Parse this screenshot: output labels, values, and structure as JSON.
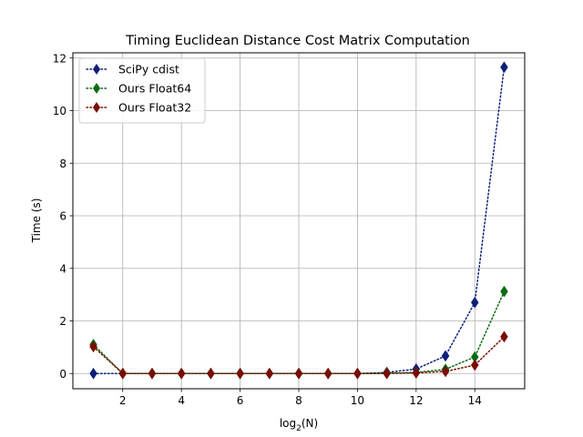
{
  "chart_data": {
    "type": "line",
    "title": "Timing Euclidean Distance Cost Matrix Computation",
    "xlabel_main": "log",
    "xlabel_sub": "2",
    "xlabel_arg": "(N)",
    "ylabel": "Time (s)",
    "xlim": [
      0.3,
      15.7
    ],
    "ylim": [
      -0.58,
      12.2
    ],
    "xticks": [
      2,
      4,
      6,
      8,
      10,
      12,
      14
    ],
    "yticks": [
      0,
      2,
      4,
      6,
      8,
      10,
      12
    ],
    "grid": true,
    "legend_position": "top-left",
    "x": [
      1,
      2,
      3,
      4,
      5,
      6,
      7,
      8,
      9,
      10,
      11,
      12,
      13,
      14,
      15
    ],
    "series": [
      {
        "name": "SciPy cdist",
        "color": "#0b1f78",
        "values": [
          0.0,
          0.0,
          0.0,
          0.0,
          0.0,
          0.0,
          0.0,
          0.0,
          0.0,
          0.0,
          0.04,
          0.17,
          0.67,
          2.7,
          11.65
        ]
      },
      {
        "name": "Ours Float64",
        "color": "#0a6b10",
        "values": [
          1.1,
          0.0,
          0.0,
          0.0,
          0.0,
          0.0,
          0.0,
          0.0,
          0.0,
          0.0,
          0.01,
          0.04,
          0.16,
          0.63,
          3.12
        ]
      },
      {
        "name": "Ours Float32",
        "color": "#7a0d00",
        "values": [
          1.02,
          0.0,
          0.0,
          0.0,
          0.0,
          0.0,
          0.0,
          0.0,
          0.0,
          0.0,
          0.0,
          0.02,
          0.08,
          0.32,
          1.4
        ]
      }
    ]
  }
}
